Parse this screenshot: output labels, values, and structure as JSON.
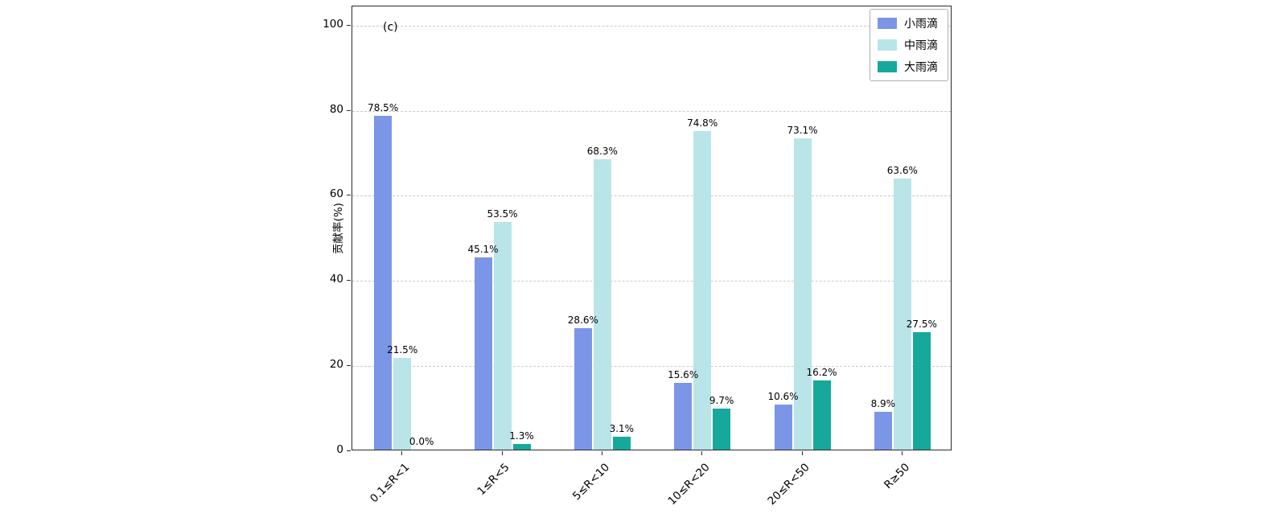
{
  "chart_data": {
    "type": "bar",
    "annotation": "(c)",
    "ylabel": "贡献率(%)",
    "ylim": [
      0,
      104.5
    ],
    "yticks": [
      0,
      20,
      40,
      60,
      80,
      100
    ],
    "grid": "horizontal dashed",
    "legend_position": "top-right",
    "categories": [
      "0.1≤R<1",
      "1≤R<5",
      "5≤R<10",
      "10≤R<20",
      "20≤R<50",
      "R≥50"
    ],
    "series": [
      {
        "name": "小雨滴",
        "color": "#7b96e6",
        "values": [
          78.5,
          45.1,
          28.6,
          15.6,
          10.6,
          8.9
        ],
        "labels": [
          "78.5%",
          "45.1%",
          "28.6%",
          "15.6%",
          "10.6%",
          "8.9%"
        ]
      },
      {
        "name": "中雨滴",
        "color": "#b9e4e8",
        "values": [
          21.5,
          53.5,
          68.3,
          74.8,
          73.1,
          63.6
        ],
        "labels": [
          "21.5%",
          "53.5%",
          "68.3%",
          "74.8%",
          "73.1%",
          "63.6%"
        ]
      },
      {
        "name": "大雨滴",
        "color": "#17a89c",
        "values": [
          0.0,
          1.3,
          3.1,
          9.7,
          16.2,
          27.5
        ],
        "labels": [
          "0.0%",
          "1.3%",
          "3.1%",
          "9.7%",
          "16.2%",
          "27.5%"
        ]
      }
    ]
  }
}
